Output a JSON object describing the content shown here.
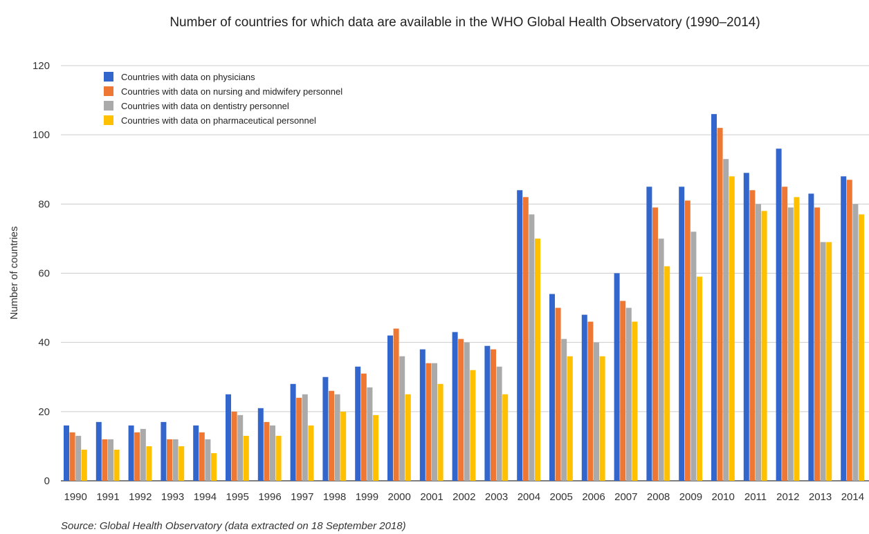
{
  "chart_data": {
    "type": "bar",
    "title": "Number of countries for which data are available in the WHO Global Health Observatory (1990–2014)",
    "xlabel": "",
    "ylabel": "Number of countries",
    "ylim": [
      0,
      120
    ],
    "yticks": [
      0,
      20,
      40,
      60,
      80,
      100,
      120
    ],
    "grid": true,
    "legend_position": "top-left",
    "categories": [
      "1990",
      "1991",
      "1992",
      "1993",
      "1994",
      "1995",
      "1996",
      "1997",
      "1998",
      "1999",
      "2000",
      "2001",
      "2002",
      "2003",
      "2004",
      "2005",
      "2006",
      "2007",
      "2008",
      "2009",
      "2010",
      "2011",
      "2012",
      "2013",
      "2014"
    ],
    "series": [
      {
        "name": "Countries with data on physicians",
        "color": "#3366cc",
        "values": [
          16,
          17,
          16,
          17,
          16,
          25,
          21,
          28,
          30,
          33,
          42,
          38,
          43,
          39,
          84,
          54,
          48,
          60,
          85,
          85,
          106,
          89,
          96,
          83,
          88
        ]
      },
      {
        "name": "Countries with data on nursing and midwifery personnel",
        "color": "#ee7733",
        "values": [
          14,
          12,
          14,
          12,
          14,
          20,
          17,
          24,
          26,
          31,
          44,
          34,
          41,
          38,
          82,
          50,
          46,
          52,
          79,
          81,
          102,
          84,
          85,
          79,
          87
        ]
      },
      {
        "name": "Countries with data on dentistry personnel",
        "color": "#aaaaaa",
        "values": [
          13,
          12,
          15,
          12,
          12,
          19,
          16,
          25,
          25,
          27,
          36,
          34,
          40,
          33,
          77,
          41,
          40,
          50,
          70,
          72,
          93,
          80,
          79,
          69,
          80
        ]
      },
      {
        "name": "Countries with data on pharmaceutical personnel",
        "color": "#ffc000",
        "values": [
          9,
          9,
          10,
          10,
          8,
          13,
          13,
          16,
          20,
          19,
          25,
          28,
          32,
          25,
          70,
          36,
          36,
          46,
          62,
          59,
          88,
          78,
          82,
          69,
          77
        ]
      }
    ],
    "source": "Source: Global Health Observatory (data extracted on 18 September 2018)"
  }
}
